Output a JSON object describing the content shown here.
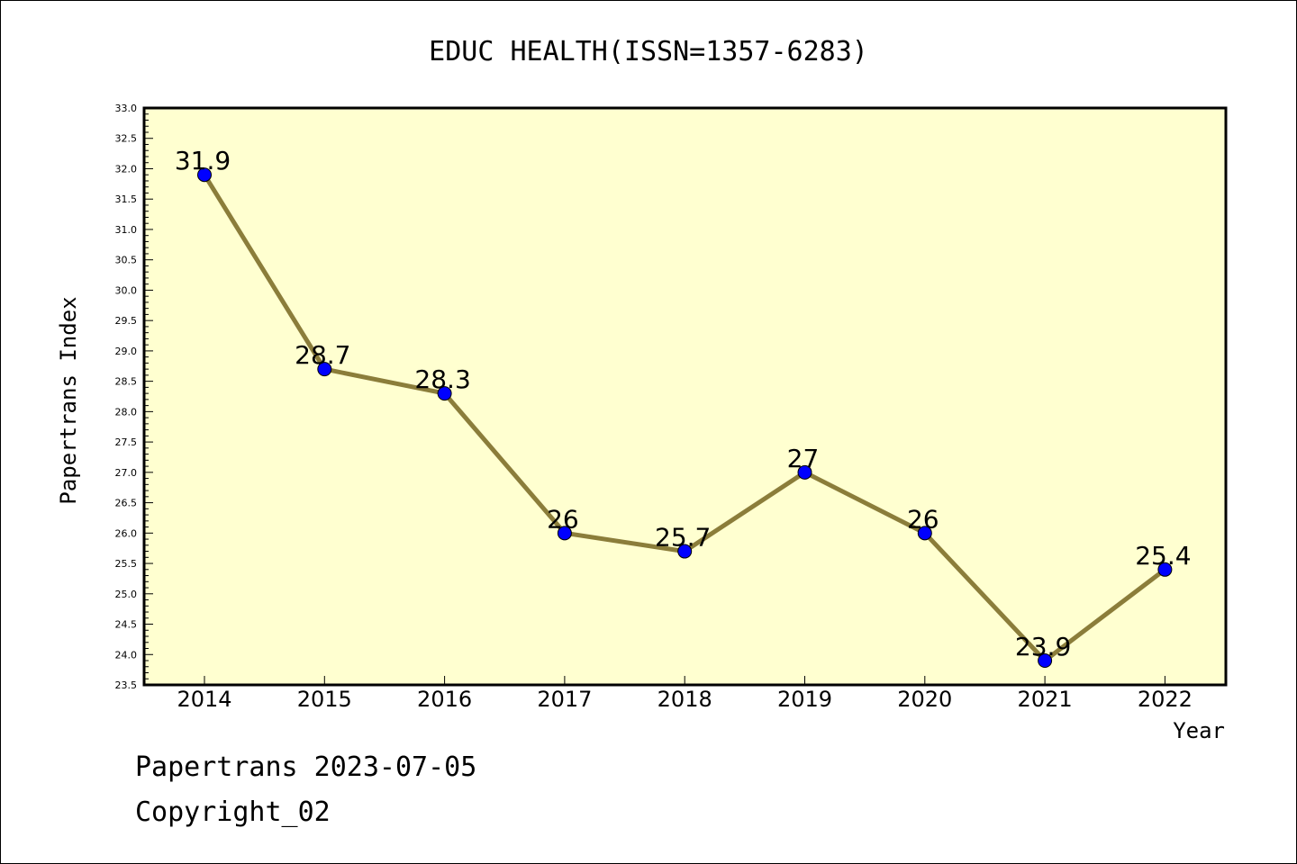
{
  "chart_data": {
    "type": "line",
    "title": "EDUC HEALTH(ISSN=1357-6283)",
    "xlabel": "Year",
    "ylabel": "Papertrans Index",
    "categories": [
      "2014",
      "2015",
      "2016",
      "2017",
      "2018",
      "2019",
      "2020",
      "2021",
      "2022"
    ],
    "values": [
      31.9,
      28.7,
      28.3,
      26,
      25.7,
      27,
      26,
      23.9,
      25.4
    ],
    "data_labels": [
      "31.9",
      "28.7",
      "28.3",
      "26",
      "25.7",
      "27",
      "26",
      "23.9",
      "25.4"
    ],
    "ylim": [
      23.5,
      33.0
    ],
    "yticks": [
      "23.5",
      "24.0",
      "24.5",
      "25.0",
      "25.5",
      "26.0",
      "26.5",
      "27.0",
      "27.5",
      "28.0",
      "28.5",
      "29.0",
      "29.5",
      "30.0",
      "30.5",
      "31.0",
      "31.5",
      "32.0",
      "32.5",
      "33.0"
    ],
    "grid": false,
    "colors": {
      "plot_background": "#ffffd0",
      "line": "#8b7d3a",
      "marker": "#0000ff"
    }
  },
  "footer": {
    "line1": "Papertrans 2023-07-05",
    "line2": "Copyright_02"
  }
}
